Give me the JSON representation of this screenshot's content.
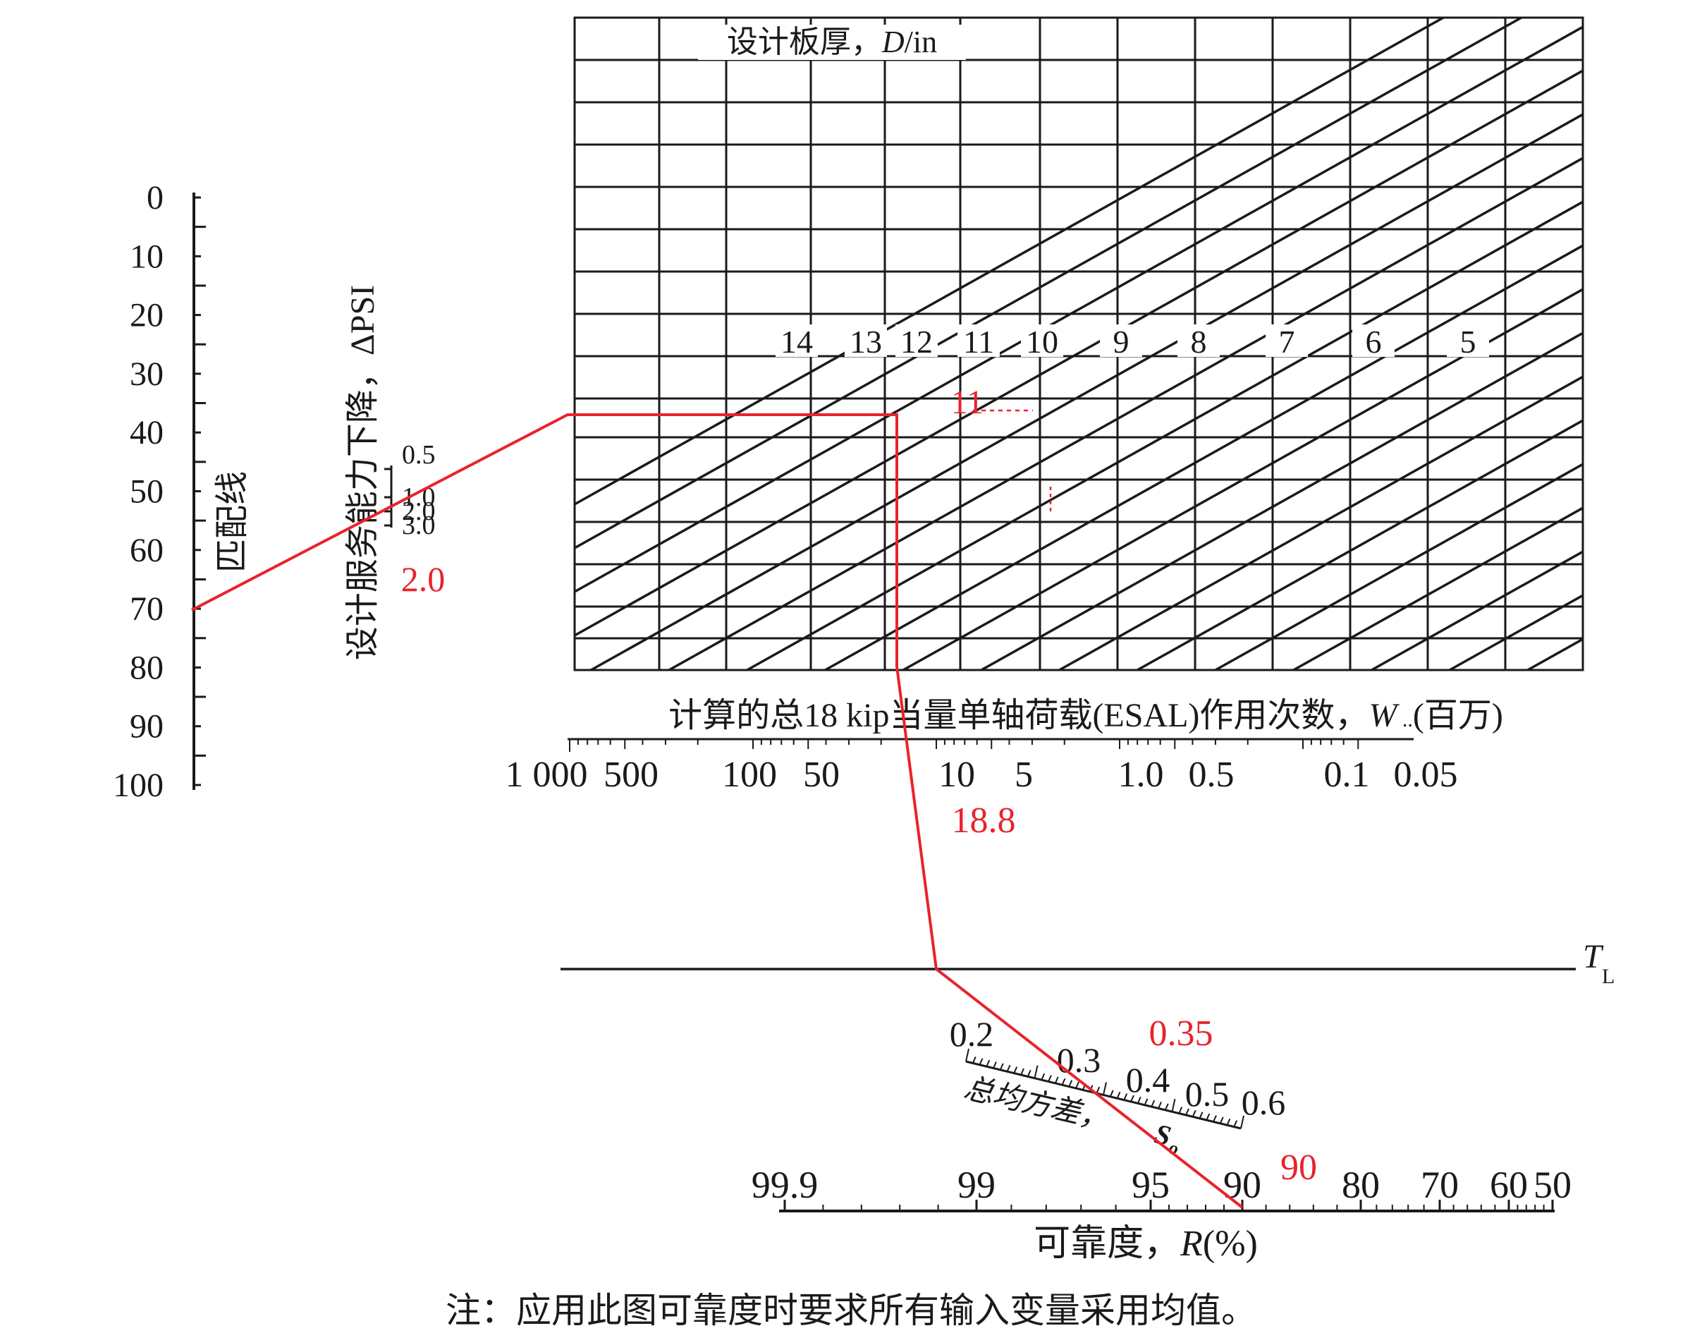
{
  "chart_data": {
    "type": "nomograph",
    "title": "",
    "colors": {
      "ink": "#1a1a1a",
      "solution": "#e8232b"
    },
    "match_scale": {
      "label": "匹配线",
      "ticks": [
        "0",
        "10",
        "20",
        "30",
        "40",
        "50",
        "60",
        "70",
        "80",
        "90",
        "100"
      ]
    },
    "psi_scale": {
      "label": "设计服务能力下降，ΔPSI",
      "ticks": [
        "0.5",
        "1.0",
        "2.0",
        "3.0"
      ],
      "input_value": "2.0"
    },
    "slab_chart": {
      "label_prefix": "设计板厚，",
      "label_var": "D",
      "label_unit": "/in",
      "thickness_lines": [
        "14",
        "13",
        "12",
        "11",
        "10",
        "9",
        "8",
        "7",
        "6",
        "5"
      ],
      "result_value": "11"
    },
    "esal_scale": {
      "label_prefix": "计算的总18 kip当量单轴荷载(ESAL)作用次数，",
      "label_var": "W",
      "label_unit": "(百万)",
      "ticks": [
        "1 000",
        "500",
        "100",
        "50",
        "10",
        "5",
        "1.0",
        "0.5",
        "0.1",
        "0.05"
      ],
      "input_value": "18.8"
    },
    "turning_line": {
      "label": "T",
      "subscript": "L"
    },
    "deviation_scale": {
      "label": "总均方差，",
      "symbol": "S",
      "symbol_sub": "o",
      "ticks": [
        "0.2",
        "0.3",
        "0.4",
        "0.5",
        "0.6"
      ],
      "input_value": "0.35"
    },
    "reliability_scale": {
      "label_prefix": "可靠度，",
      "label_var": "R",
      "label_unit": "(%)",
      "ticks": [
        "99.9",
        "99",
        "95",
        "90",
        "80",
        "70",
        "60",
        "50"
      ],
      "input_value": "90"
    },
    "note": "注：应用此图可靠度时要求所有输入变量采用均值。"
  }
}
